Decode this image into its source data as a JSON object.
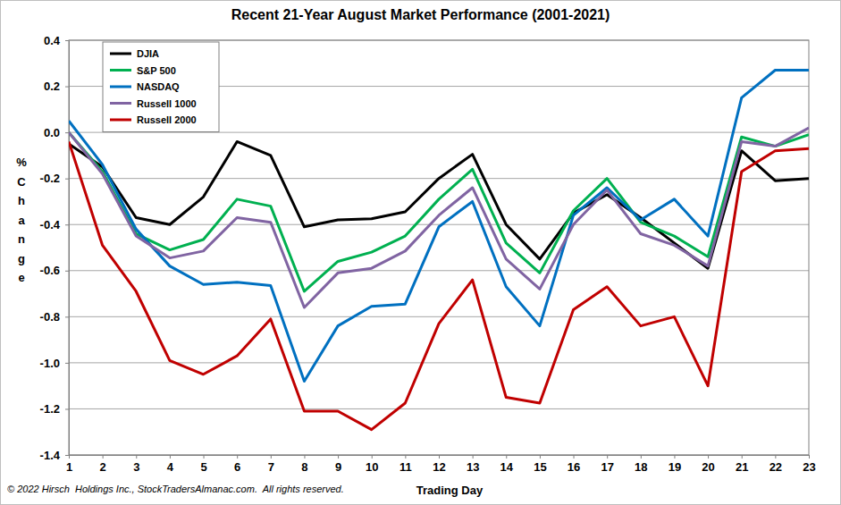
{
  "chart_data": {
    "type": "line",
    "title": "Recent 21-Year August Market Performance (2001-2021)",
    "x_label": "Trading Day",
    "y_label": "% Change",
    "annotations": [
      "© 2022 Hirsch  Holdings Inc., StockTradersAlmanac.com.  All rights reserved."
    ],
    "x": [
      1,
      2,
      3,
      4,
      5,
      6,
      7,
      8,
      9,
      10,
      11,
      12,
      13,
      14,
      15,
      16,
      17,
      18,
      19,
      20,
      21,
      22,
      23
    ],
    "xlim": [
      1,
      23
    ],
    "xticks": [
      1,
      2,
      3,
      4,
      5,
      6,
      7,
      8,
      9,
      10,
      11,
      12,
      13,
      14,
      15,
      16,
      17,
      18,
      19,
      20,
      21,
      22,
      23
    ],
    "ylim": [
      -1.4,
      0.4
    ],
    "yticks": [
      -1.4,
      -1.2,
      {
        "value": -1,
        "label": "-1.0"
      },
      -0.8,
      -0.6,
      -0.4,
      -0.2,
      {
        "value": 0,
        "label": "0.0"
      },
      0.2,
      0.4
    ],
    "grid": true,
    "legend": "upper left",
    "series": [
      {
        "name": "DJIA",
        "color": "#000000",
        "values": [
          -0.05,
          -0.15,
          -0.37,
          -0.4,
          -0.28,
          -0.04,
          -0.1,
          -0.41,
          -0.38,
          -0.375,
          -0.345,
          -0.2,
          -0.095,
          -0.4,
          -0.55,
          -0.35,
          -0.27,
          -0.37,
          -0.48,
          -0.59,
          -0.08,
          -0.21,
          -0.2
        ]
      },
      {
        "name": "S&P 500",
        "color": "#00b050",
        "values": [
          0.0,
          -0.17,
          -0.44,
          -0.51,
          -0.465,
          -0.29,
          -0.32,
          -0.69,
          -0.56,
          -0.52,
          -0.45,
          -0.29,
          -0.16,
          -0.48,
          -0.61,
          -0.34,
          -0.2,
          -0.39,
          -0.45,
          -0.54,
          -0.02,
          -0.06,
          -0.01
        ]
      },
      {
        "name": "NASDAQ",
        "color": "#0070c0",
        "values": [
          0.05,
          -0.14,
          -0.42,
          -0.58,
          -0.66,
          -0.65,
          -0.665,
          -1.08,
          -0.84,
          -0.755,
          -0.745,
          -0.41,
          -0.3,
          -0.67,
          -0.84,
          -0.36,
          -0.24,
          -0.38,
          -0.29,
          -0.45,
          0.15,
          0.27,
          0.27
        ]
      },
      {
        "name": "Russell 1000",
        "color": "#8064a2",
        "values": [
          0.0,
          -0.18,
          -0.45,
          -0.545,
          -0.515,
          -0.37,
          -0.39,
          -0.76,
          -0.61,
          -0.59,
          -0.515,
          -0.36,
          -0.24,
          -0.55,
          -0.68,
          -0.4,
          -0.25,
          -0.44,
          -0.49,
          -0.58,
          -0.04,
          -0.06,
          0.02
        ]
      },
      {
        "name": "Russell 2000",
        "color": "#c00000",
        "values": [
          -0.04,
          -0.49,
          -0.69,
          -0.99,
          -1.05,
          -0.97,
          -0.81,
          -1.21,
          -1.21,
          -1.29,
          -1.175,
          -0.83,
          -0.64,
          -1.15,
          -1.175,
          -0.77,
          -0.67,
          -0.84,
          -0.8,
          -1.1,
          -0.17,
          -0.08,
          -0.07
        ]
      }
    ]
  }
}
